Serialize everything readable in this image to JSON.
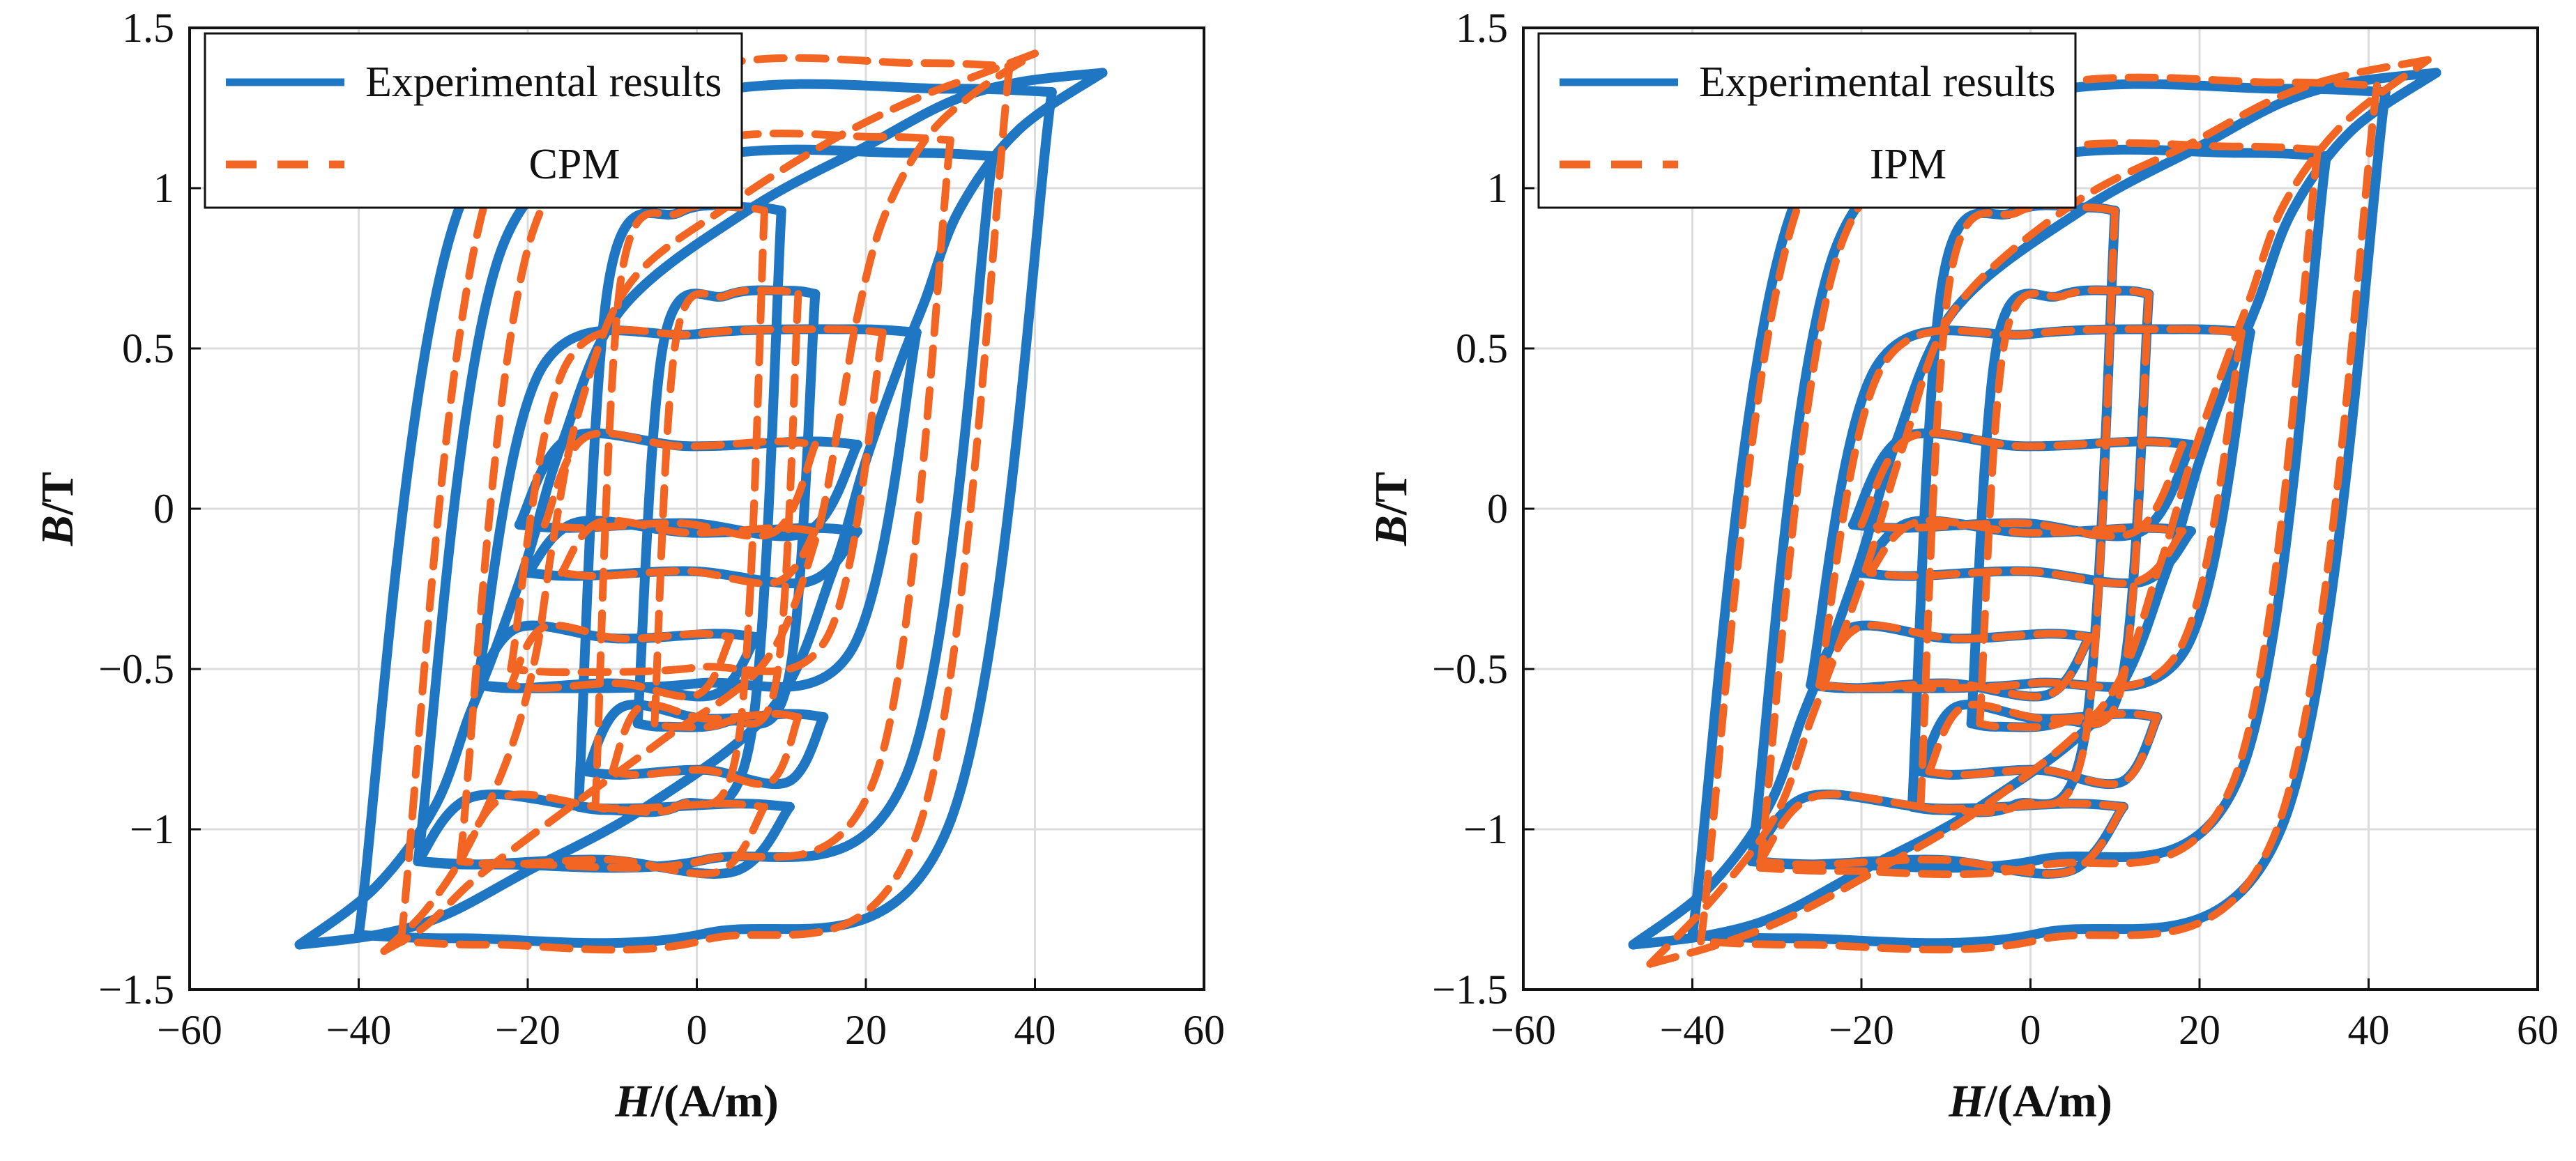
{
  "colors": {
    "experimental": "#1f77c4",
    "model": "#f26522",
    "grid": "#dcdcdc",
    "axis": "#111111"
  },
  "chart_data": [
    {
      "type": "line",
      "panel": "left",
      "xlabel_italic": "H",
      "xlabel_rest": "/(A/m)",
      "ylabel_italic": "B",
      "ylabel_rest": "/T",
      "xlim": [
        -60,
        60
      ],
      "ylim": [
        -1.5,
        1.5
      ],
      "x_ticks": [
        -60,
        -40,
        -20,
        0,
        20,
        40,
        60
      ],
      "x_tick_labels": [
        "−60",
        "−40",
        "−20",
        "0",
        "20",
        "40",
        "60"
      ],
      "y_ticks": [
        -1.5,
        -1,
        -0.5,
        0,
        0.5,
        1,
        1.5
      ],
      "y_tick_labels": [
        "−1.5",
        "−1",
        "−0.5",
        "0",
        "0.5",
        "1",
        "1.5"
      ],
      "grid": true,
      "legend_position": "top-left",
      "series": [
        {
          "name": "Experimental results",
          "style": "solid",
          "offset": [
            0,
            0
          ],
          "scale": 1.0,
          "outer_loop": {
            "ascending": [
              [
                -47,
                -1.36
              ],
              [
                -38,
                -1.33
              ],
              [
                -30,
                -1.27
              ],
              [
                -20,
                -1.13
              ],
              [
                -6,
                -0.93
              ],
              [
                9,
                -0.62
              ],
              [
                16,
                -0.2
              ],
              [
                20,
                0.15
              ],
              [
                24,
                0.45
              ],
              [
                27,
                0.65
              ],
              [
                31,
                0.93
              ],
              [
                38,
                1.18
              ],
              [
                48,
                1.36
              ]
            ],
            "descending": [
              [
                48,
                1.36
              ],
              [
                38,
                1.33
              ],
              [
                30,
                1.27
              ],
              [
                20,
                1.13
              ],
              [
                6,
                0.93
              ],
              [
                -9,
                0.62
              ],
              [
                -16,
                0.2
              ],
              [
                -20,
                -0.15
              ],
              [
                -24,
                -0.45
              ],
              [
                -27,
                -0.65
              ],
              [
                -31,
                -0.93
              ],
              [
                -38,
                -1.18
              ],
              [
                -47,
                -1.36
              ]
            ]
          },
          "minor_loops": [
            {
              "x": [
                -40,
                42
              ],
              "y": [
                -1.33,
                1.3
              ]
            },
            {
              "x": [
                -33,
                35
              ],
              "y": [
                -1.1,
                1.1
              ]
            },
            {
              "x": [
                -14,
                10
              ],
              "y": [
                -0.93,
                0.93
              ]
            },
            {
              "x": [
                -7,
                14
              ],
              "y": [
                -0.67,
                0.67
              ]
            },
            {
              "x": [
                -26,
                26
              ],
              "y": [
                -0.55,
                0.55
              ]
            },
            {
              "x": [
                -21,
                19
              ],
              "y": [
                -0.05,
                0.2
              ]
            },
            {
              "x": [
                -20,
                19
              ],
              "y": [
                -0.2,
                -0.07
              ]
            },
            {
              "x": [
                -26,
                7
              ],
              "y": [
                -0.55,
                -0.4
              ]
            },
            {
              "x": [
                -13,
                15
              ],
              "y": [
                -0.82,
                -0.65
              ]
            },
            {
              "x": [
                -33,
                11
              ],
              "y": [
                -1.1,
                -0.93
              ]
            }
          ]
        },
        {
          "name": "CPM",
          "style": "dashed",
          "offset": [
            -5.5,
            0.05
          ],
          "scale": 0.86,
          "outer_loop": {
            "ascending": [
              [
                -37,
                -1.38
              ],
              [
                -32,
                -1.3
              ],
              [
                -26,
                -1.15
              ],
              [
                -16,
                -0.95
              ],
              [
                -4,
                -0.72
              ],
              [
                8,
                -0.48
              ],
              [
                14,
                -0.1
              ],
              [
                17,
                0.3
              ],
              [
                19,
                0.6
              ],
              [
                22,
                0.9
              ],
              [
                27,
                1.15
              ],
              [
                33,
                1.3
              ],
              [
                40,
                1.42
              ]
            ],
            "descending": [
              [
                40,
                1.42
              ],
              [
                33,
                1.35
              ],
              [
                26,
                1.28
              ],
              [
                16,
                1.15
              ],
              [
                4,
                0.95
              ],
              [
                -8,
                0.7
              ],
              [
                -14,
                0.3
              ],
              [
                -17,
                -0.1
              ],
              [
                -19,
                -0.45
              ],
              [
                -22,
                -0.75
              ],
              [
                -27,
                -1.05
              ],
              [
                -32,
                -1.25
              ],
              [
                -37,
                -1.38
              ]
            ]
          },
          "minor_loops": [
            {
              "x": [
                -35,
                37
              ],
              "y": [
                -1.35,
                1.38
              ]
            },
            {
              "x": [
                -28,
                30
              ],
              "y": [
                -1.1,
                1.15
              ]
            },
            {
              "x": [
                -12,
                8
              ],
              "y": [
                -0.93,
                0.93
              ]
            },
            {
              "x": [
                -5,
                12
              ],
              "y": [
                -0.67,
                0.67
              ]
            },
            {
              "x": [
                -22,
                22
              ],
              "y": [
                -0.5,
                0.55
              ]
            },
            {
              "x": [
                -18,
                14
              ],
              "y": [
                -0.05,
                0.2
              ]
            },
            {
              "x": [
                -16,
                14
              ],
              "y": [
                -0.2,
                -0.07
              ]
            },
            {
              "x": [
                -22,
                4
              ],
              "y": [
                -0.55,
                -0.4
              ]
            },
            {
              "x": [
                -10,
                12
              ],
              "y": [
                -0.82,
                -0.65
              ]
            },
            {
              "x": [
                -28,
                8
              ],
              "y": [
                -1.1,
                -0.93
              ]
            }
          ]
        }
      ]
    },
    {
      "type": "line",
      "panel": "right",
      "xlabel_italic": "H",
      "xlabel_rest": "/(A/m)",
      "ylabel_italic": "B",
      "ylabel_rest": "/T",
      "xlim": [
        -60,
        60
      ],
      "ylim": [
        -1.5,
        1.5
      ],
      "x_ticks": [
        -60,
        -40,
        -20,
        0,
        20,
        40,
        60
      ],
      "x_tick_labels": [
        "−60",
        "−40",
        "−20",
        "0",
        "20",
        "40",
        "60"
      ],
      "y_ticks": [
        -1.5,
        -1,
        -0.5,
        0,
        0.5,
        1,
        1.5
      ],
      "y_tick_labels": [
        "−1.5",
        "−1",
        "−0.5",
        "0",
        "0.5",
        "1",
        "1.5"
      ],
      "grid": true,
      "legend_position": "top-left",
      "series": [
        {
          "name": "Experimental results",
          "style": "solid",
          "offset": [
            0,
            0
          ],
          "scale": 1.0,
          "outer_loop": {
            "ascending": [
              [
                -47,
                -1.36
              ],
              [
                -38,
                -1.33
              ],
              [
                -30,
                -1.27
              ],
              [
                -20,
                -1.13
              ],
              [
                -6,
                -0.93
              ],
              [
                9,
                -0.62
              ],
              [
                16,
                -0.2
              ],
              [
                20,
                0.15
              ],
              [
                24,
                0.45
              ],
              [
                27,
                0.65
              ],
              [
                31,
                0.93
              ],
              [
                38,
                1.18
              ],
              [
                48,
                1.36
              ]
            ],
            "descending": [
              [
                48,
                1.36
              ],
              [
                38,
                1.33
              ],
              [
                30,
                1.27
              ],
              [
                20,
                1.13
              ],
              [
                6,
                0.93
              ],
              [
                -9,
                0.62
              ],
              [
                -16,
                0.2
              ],
              [
                -20,
                -0.15
              ],
              [
                -24,
                -0.45
              ],
              [
                -27,
                -0.65
              ],
              [
                -31,
                -0.93
              ],
              [
                -38,
                -1.18
              ],
              [
                -47,
                -1.36
              ]
            ]
          },
          "minor_loops": [
            {
              "x": [
                -40,
                42
              ],
              "y": [
                -1.33,
                1.3
              ]
            },
            {
              "x": [
                -33,
                35
              ],
              "y": [
                -1.1,
                1.1
              ]
            },
            {
              "x": [
                -14,
                10
              ],
              "y": [
                -0.93,
                0.93
              ]
            },
            {
              "x": [
                -7,
                14
              ],
              "y": [
                -0.67,
                0.67
              ]
            },
            {
              "x": [
                -26,
                26
              ],
              "y": [
                -0.55,
                0.55
              ]
            },
            {
              "x": [
                -21,
                19
              ],
              "y": [
                -0.05,
                0.2
              ]
            },
            {
              "x": [
                -20,
                19
              ],
              "y": [
                -0.2,
                -0.07
              ]
            },
            {
              "x": [
                -26,
                7
              ],
              "y": [
                -0.55,
                -0.4
              ]
            },
            {
              "x": [
                -13,
                15
              ],
              "y": [
                -0.82,
                -0.65
              ]
            },
            {
              "x": [
                -33,
                11
              ],
              "y": [
                -1.1,
                -0.93
              ]
            }
          ]
        },
        {
          "name": "IPM",
          "style": "dashed",
          "offset": [
            0.5,
            0.03
          ],
          "scale": 0.98,
          "outer_loop": {
            "ascending": [
              [
                -45,
                -1.42
              ],
              [
                -37,
                -1.36
              ],
              [
                -29,
                -1.28
              ],
              [
                -19,
                -1.14
              ],
              [
                -5,
                -0.92
              ],
              [
                9,
                -0.6
              ],
              [
                15,
                -0.2
              ],
              [
                19,
                0.15
              ],
              [
                23,
                0.45
              ],
              [
                26,
                0.66
              ],
              [
                30,
                0.95
              ],
              [
                37,
                1.2
              ],
              [
                47,
                1.4
              ]
            ],
            "descending": [
              [
                47,
                1.4
              ],
              [
                37,
                1.35
              ],
              [
                29,
                1.28
              ],
              [
                19,
                1.14
              ],
              [
                5,
                0.95
              ],
              [
                -9,
                0.62
              ],
              [
                -15,
                0.2
              ],
              [
                -19,
                -0.15
              ],
              [
                -23,
                -0.45
              ],
              [
                -26,
                -0.66
              ],
              [
                -30,
                -0.95
              ],
              [
                -37,
                -1.2
              ],
              [
                -45,
                -1.42
              ]
            ]
          },
          "minor_loops": [
            {
              "x": [
                -39,
                41
              ],
              "y": [
                -1.35,
                1.32
              ]
            },
            {
              "x": [
                -32,
                34
              ],
              "y": [
                -1.12,
                1.12
              ]
            },
            {
              "x": [
                -13,
                10
              ],
              "y": [
                -0.93,
                0.93
              ]
            },
            {
              "x": [
                -6,
                14
              ],
              "y": [
                -0.67,
                0.67
              ]
            },
            {
              "x": [
                -25,
                25
              ],
              "y": [
                -0.55,
                0.55
              ]
            },
            {
              "x": [
                -20,
                18
              ],
              "y": [
                -0.05,
                0.2
              ]
            },
            {
              "x": [
                -19,
                18
              ],
              "y": [
                -0.2,
                -0.07
              ]
            },
            {
              "x": [
                -25,
                7
              ],
              "y": [
                -0.55,
                -0.4
              ]
            },
            {
              "x": [
                -12,
                15
              ],
              "y": [
                -0.82,
                -0.65
              ]
            },
            {
              "x": [
                -32,
                11
              ],
              "y": [
                -1.1,
                -0.93
              ]
            }
          ]
        }
      ]
    }
  ]
}
